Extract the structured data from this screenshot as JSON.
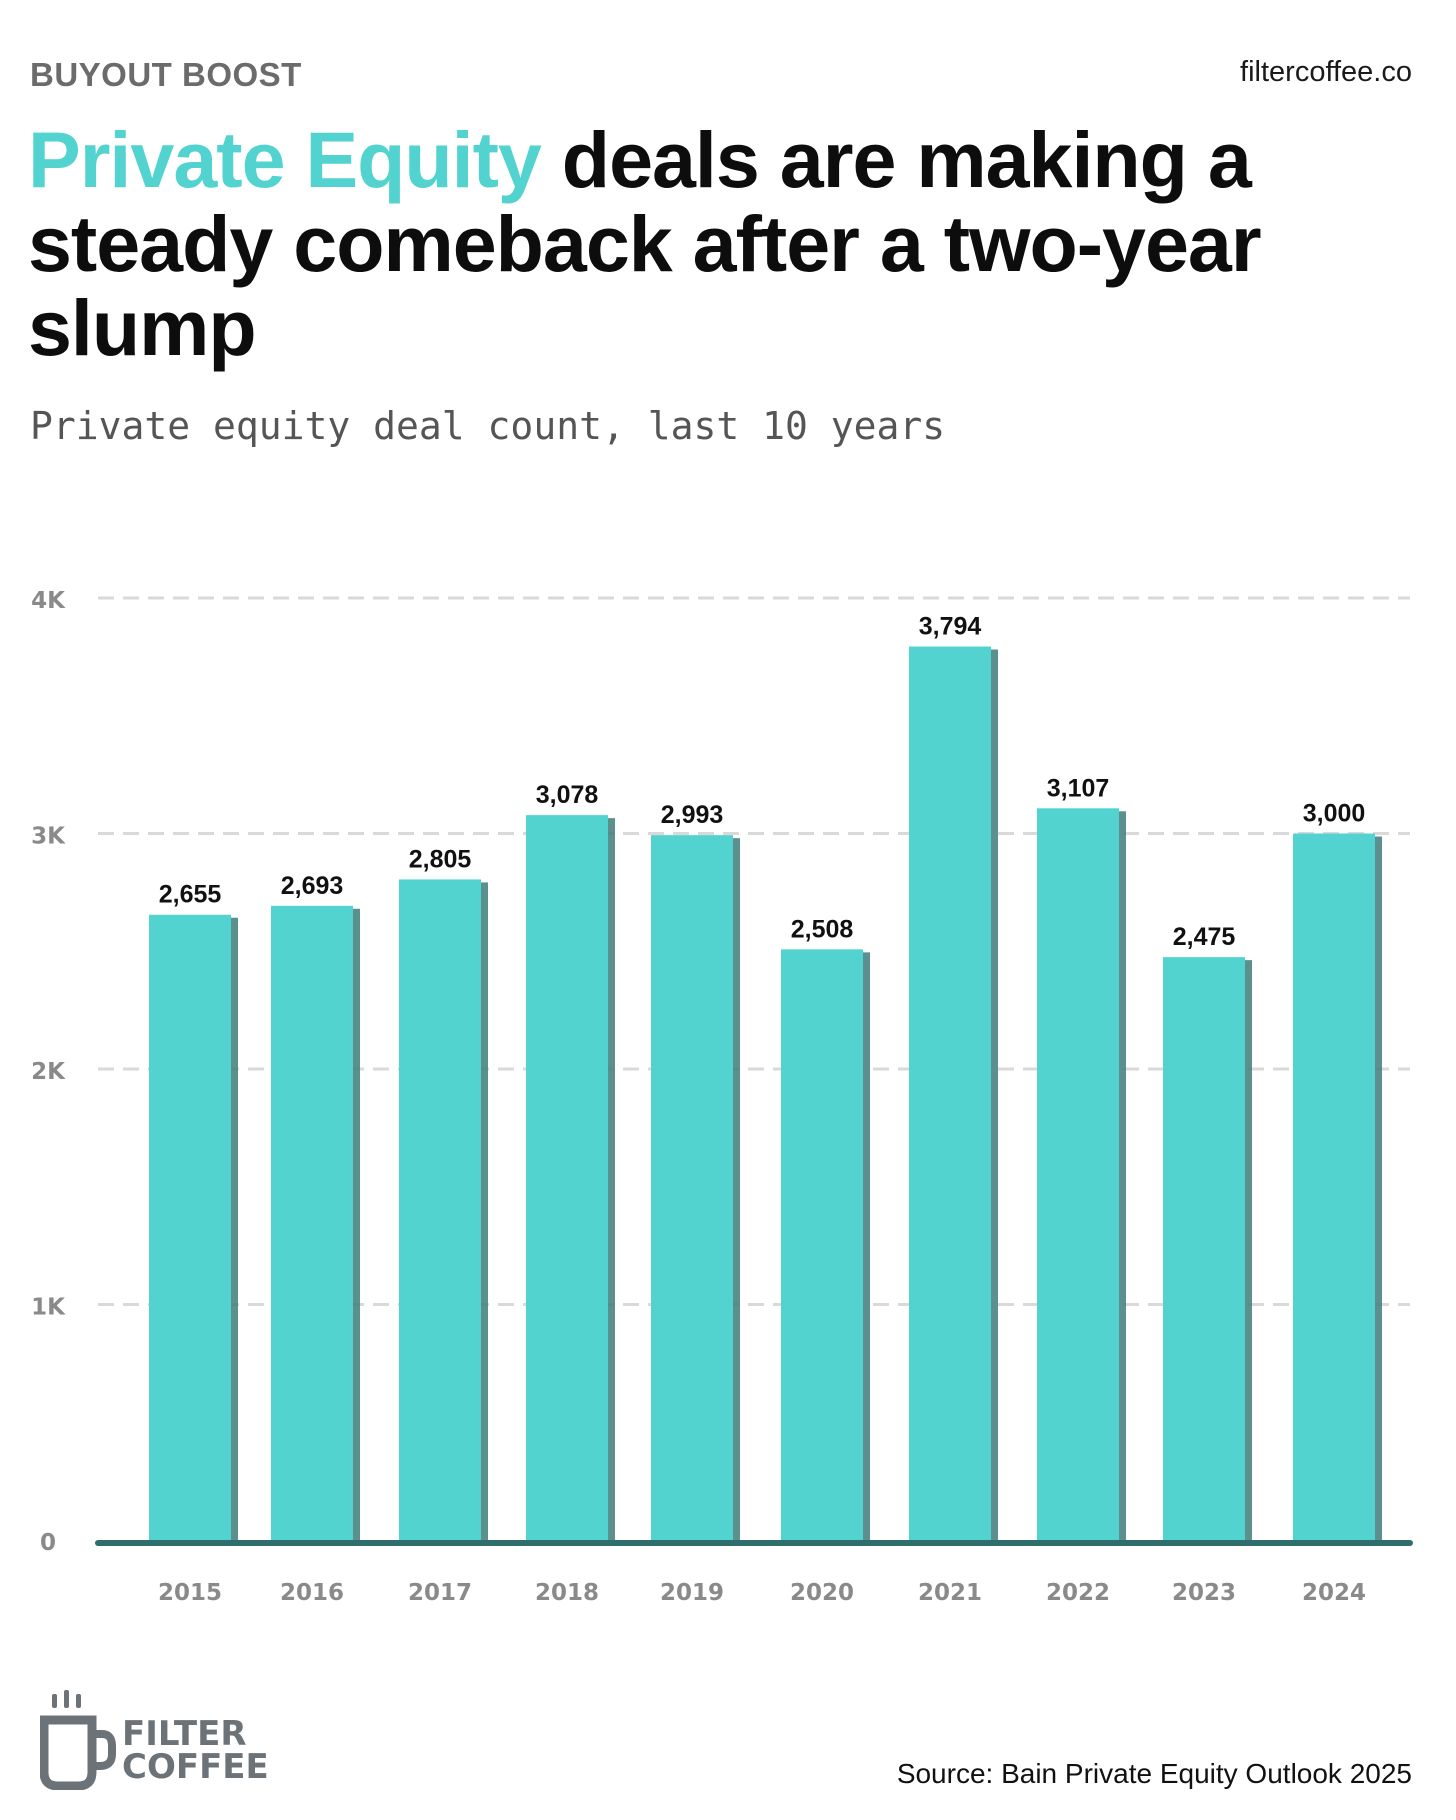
{
  "header": {
    "kicker": "BUYOUT BOOST",
    "site": "filtercoffee.co",
    "title_highlight": "Private Equity",
    "title_rest": " deals are making a steady comeback after a two-year slump",
    "subtitle": "Private equity deal count, last 10 years"
  },
  "colors": {
    "bar": "#52d3d0",
    "bar_shadow": "#3f7d7b",
    "baseline": "#2f6e6c",
    "grid": "#d9d9d9",
    "tick_text": "#8a8a8a",
    "label_text": "#111111"
  },
  "chart_data": {
    "type": "bar",
    "categories": [
      "2015",
      "2016",
      "2017",
      "2018",
      "2019",
      "2020",
      "2021",
      "2022",
      "2023",
      "2024"
    ],
    "values": [
      2655,
      2693,
      2805,
      3078,
      2993,
      2508,
      3794,
      3107,
      2475,
      3000
    ],
    "value_labels": [
      "2,655",
      "2,693",
      "2,805",
      "3,078",
      "2,993",
      "2,508",
      "3,794",
      "3,107",
      "2,475",
      "3,000"
    ],
    "yticks": [
      0,
      1000,
      2000,
      3000,
      4000
    ],
    "ytick_labels": [
      "0",
      "1K",
      "2K",
      "3K",
      "4K"
    ],
    "ylim": [
      0,
      4000
    ],
    "grid": true,
    "xlabel": "",
    "ylabel": ""
  },
  "footer": {
    "logo_line1": "FILTER",
    "logo_line2": "COFFEE",
    "source": "Source: Bain Private Equity Outlook 2025"
  }
}
